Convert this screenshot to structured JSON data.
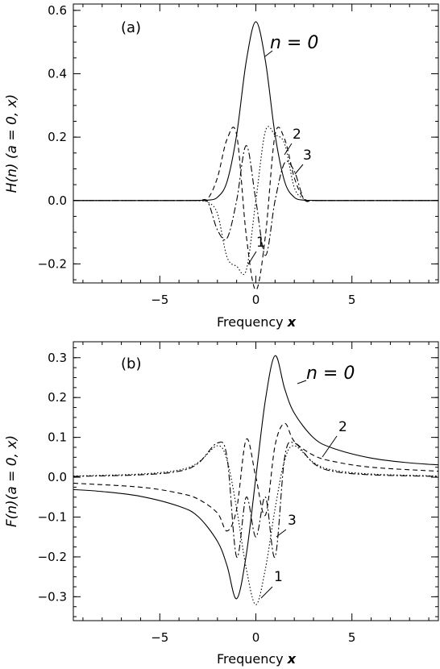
{
  "chart_data": [
    {
      "type": "line",
      "panel_label": "(a)",
      "xlabel_text": "Frequency ",
      "xlabel_var": "x",
      "ylabel": "H(n) (a = 0, x)",
      "xlim": [
        -9.5,
        9.5
      ],
      "ylim": [
        -0.26,
        0.62
      ],
      "xticks": [
        -5,
        0,
        5
      ],
      "xtick_labels": [
        "−5",
        "0",
        "5"
      ],
      "yticks": [
        -0.2,
        0.0,
        0.2,
        0.4,
        0.6
      ],
      "ytick_labels": [
        "−0.2",
        "0.0",
        "0.2",
        "0.4",
        "0.6"
      ],
      "grid": false,
      "series": [
        {
          "name": "n = 0",
          "line_style": "solid",
          "x": [
            -9.5,
            -4,
            -3,
            -2.5,
            -2,
            -1.5,
            -1,
            -0.5,
            0,
            0.5,
            1,
            1.5,
            2,
            2.5,
            3,
            4,
            9.5
          ],
          "y": [
            0,
            0,
            0.0007,
            0.0011,
            0.0103,
            0.0595,
            0.2075,
            0.4394,
            0.5642,
            0.4394,
            0.2075,
            0.0595,
            0.0103,
            0.0011,
            0.0007,
            0,
            0
          ]
        },
        {
          "name": "1",
          "line_style": "dotted",
          "x": [
            -9.5,
            -4,
            -3,
            -2.5,
            -2,
            -1.5,
            -1,
            -0.5,
            0,
            0.5,
            1,
            1.5,
            2,
            2.5,
            3,
            4,
            9.5
          ],
          "y": [
            0,
            0,
            -0.0005,
            -0.0054,
            -0.0412,
            -0.1785,
            -0.2075,
            -0.2197,
            0.0,
            0.2197,
            0.2075,
            0.1785,
            0.0412,
            0.0054,
            0.0005,
            0,
            0
          ]
        },
        {
          "name": "2",
          "line_style": "dashed",
          "x": [
            -9.5,
            -4,
            -3,
            -2.5,
            -2,
            -1.5,
            -1,
            -0.5,
            0,
            0.5,
            1,
            1.5,
            2,
            2.5,
            3,
            4,
            9.5
          ],
          "y": [
            0,
            0,
            0.0002,
            0.0061,
            0.0721,
            0.1934,
            0.2075,
            -0.1099,
            -0.2821,
            -0.1099,
            0.2075,
            0.1934,
            0.0721,
            0.0061,
            0.0002,
            0,
            0
          ]
        },
        {
          "name": "3",
          "line_style": "dash-dot",
          "x": [
            -9.5,
            -4,
            -3,
            -2.5,
            -2,
            -1.5,
            -1,
            -0.5,
            0,
            0.5,
            1,
            1.5,
            2,
            2.5,
            3,
            4,
            9.5
          ],
          "y": [
            0,
            0,
            0.0,
            -0.0049,
            -0.0927,
            -0.119,
            0.0,
            0.1735,
            0.0,
            -0.1735,
            0.0,
            0.119,
            0.0927,
            0.0049,
            0.0,
            0,
            0
          ]
        }
      ],
      "curve_labels": [
        "n = 0",
        "1",
        "2",
        "3"
      ]
    },
    {
      "type": "line",
      "panel_label": "(b)",
      "xlabel_text": "Frequency ",
      "xlabel_var": "x",
      "ylabel": "F(n)(a = 0, x)",
      "xlim": [
        -9.5,
        9.5
      ],
      "ylim": [
        -0.36,
        0.34
      ],
      "xticks": [
        -5,
        0,
        5
      ],
      "xtick_labels": [
        "−5",
        "0",
        "5"
      ],
      "yticks": [
        -0.3,
        -0.2,
        -0.1,
        0.0,
        0.1,
        0.2,
        0.3
      ],
      "ytick_labels": [
        "−0.3",
        "−0.2",
        "−0.1",
        "0.0",
        "0.1",
        "0.2",
        "0.3"
      ],
      "grid": false,
      "series": [
        {
          "name": "n = 0",
          "line_style": "solid",
          "x": [
            -9.5,
            -8,
            -6,
            -4,
            -3,
            -2,
            -1.5,
            -1,
            -0.5,
            0,
            0.5,
            1,
            1.5,
            2,
            3,
            4,
            6,
            8,
            9.5
          ],
          "y": [
            -0.031,
            -0.036,
            -0.048,
            -0.073,
            -0.099,
            -0.161,
            -0.222,
            -0.305,
            -0.195,
            0.0,
            0.195,
            0.305,
            0.222,
            0.161,
            0.099,
            0.073,
            0.048,
            0.036,
            0.031
          ]
        },
        {
          "name": "1",
          "line_style": "dotted",
          "x": [
            -9.5,
            -6,
            -4,
            -3,
            -2,
            -1.5,
            -1,
            -0.5,
            0,
            0.5,
            1,
            1.5,
            2,
            3,
            4,
            6,
            9.5
          ],
          "y": [
            0.003,
            0.008,
            0.018,
            0.037,
            0.079,
            0.043,
            -0.079,
            -0.229,
            -0.32,
            -0.229,
            -0.079,
            0.043,
            0.079,
            0.037,
            0.018,
            0.008,
            0.003
          ]
        },
        {
          "name": "2",
          "line_style": "dashed",
          "x": [
            -9.5,
            -6,
            -4,
            -3,
            -2,
            -1.5,
            -1,
            -0.5,
            0,
            0.5,
            1,
            1.5,
            2,
            3,
            4,
            6,
            9.5
          ],
          "y": [
            -0.015,
            -0.025,
            -0.04,
            -0.055,
            -0.09,
            -0.135,
            -0.08,
            0.095,
            0.0,
            -0.095,
            0.08,
            0.135,
            0.09,
            0.055,
            0.04,
            0.025,
            0.015
          ]
        },
        {
          "name": "3",
          "line_style": "dash-dot",
          "x": [
            -9.5,
            -6,
            -4,
            -3,
            -2,
            -1.5,
            -1,
            -0.5,
            0,
            0.5,
            1,
            1.5,
            2,
            3,
            4,
            6,
            9.5
          ],
          "y": [
            0.002,
            0.006,
            0.015,
            0.035,
            0.086,
            0.05,
            -0.2,
            -0.05,
            -0.15,
            -0.05,
            -0.2,
            0.05,
            0.086,
            0.035,
            0.015,
            0.006,
            0.002
          ]
        }
      ],
      "curve_labels": [
        "n = 0",
        "2",
        "3",
        "1"
      ]
    }
  ]
}
